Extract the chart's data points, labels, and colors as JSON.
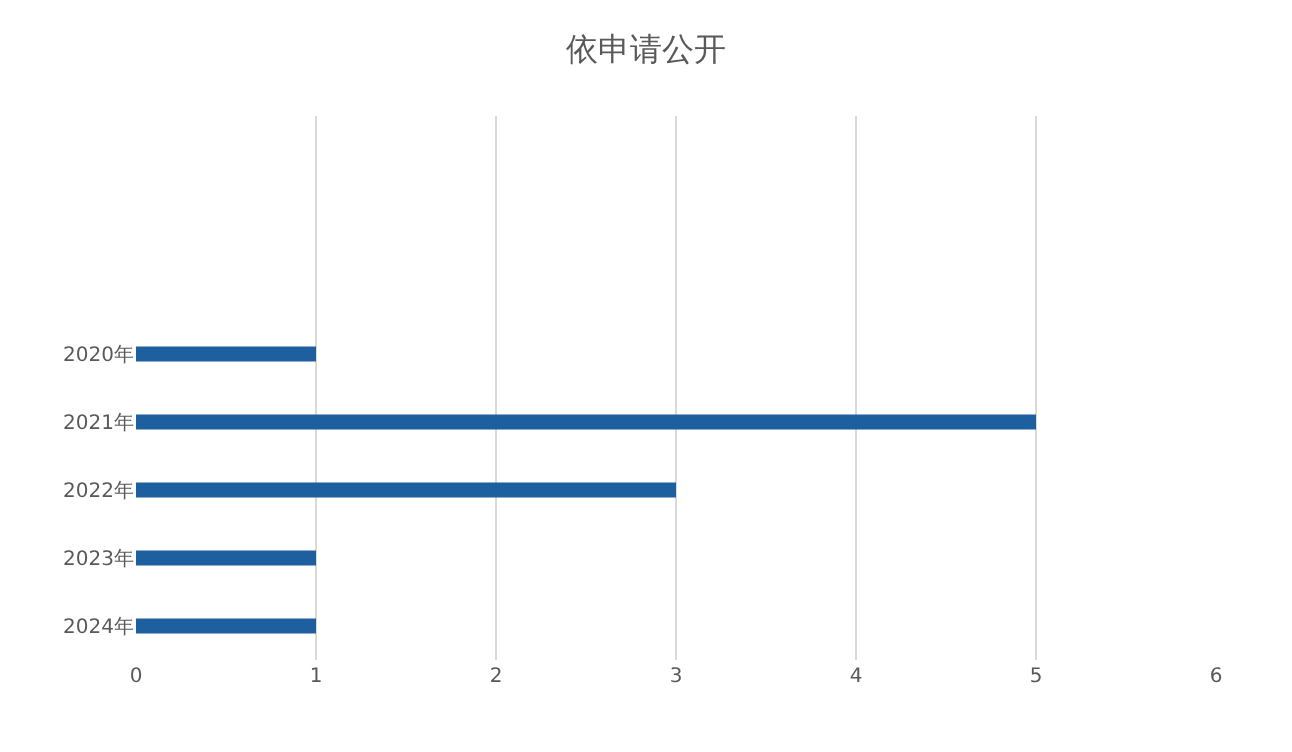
{
  "chart_data": {
    "type": "bar",
    "orientation": "horizontal",
    "title": "依申请公开",
    "categories": [
      null,
      null,
      null,
      "2020年",
      "2021年",
      "2022年",
      "2023年",
      "2024年"
    ],
    "values": [
      null,
      null,
      null,
      1,
      5,
      3,
      1,
      1
    ],
    "color": "#1d5f9f",
    "xlim": [
      0,
      6
    ],
    "xticks": [
      0,
      1,
      2,
      3,
      4,
      5,
      6
    ],
    "grid": "x",
    "legend": false
  }
}
